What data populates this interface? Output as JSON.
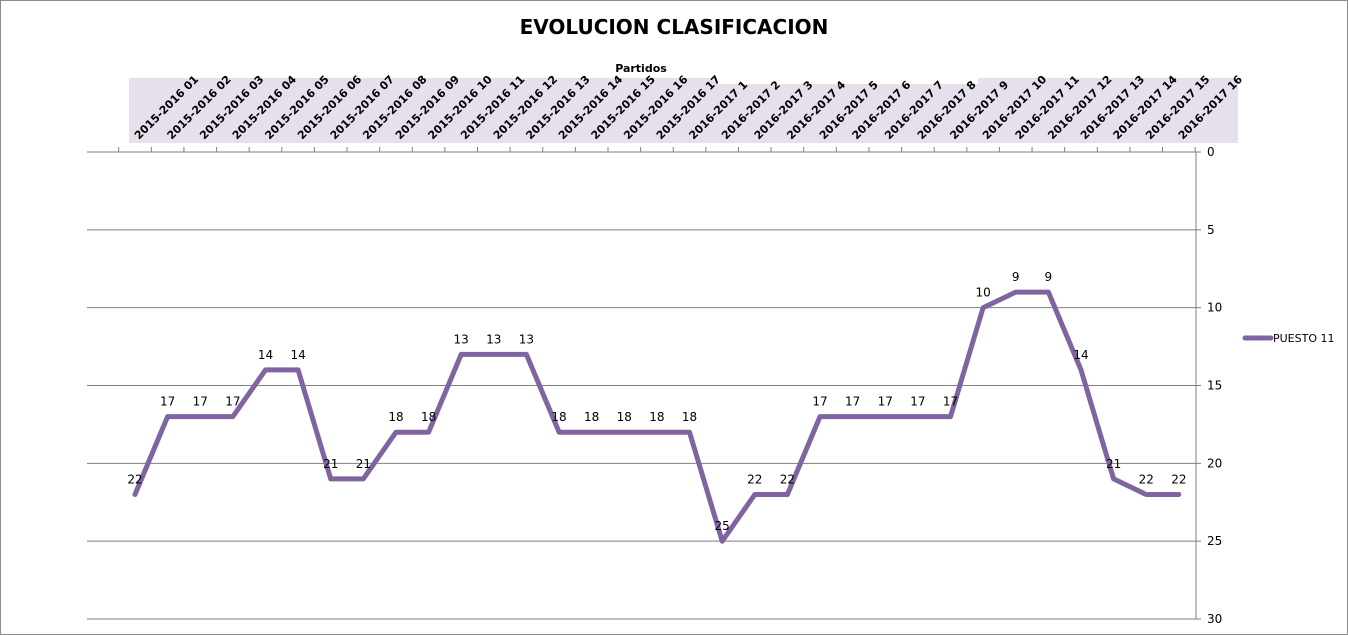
{
  "chart_data": {
    "type": "line",
    "title": "EVOLUCION CLASIFICACION",
    "xlabel": "Partidos",
    "ylabel": "",
    "y_reversed": true,
    "ylim": [
      0,
      30
    ],
    "yticks": [
      0,
      5,
      10,
      15,
      20,
      25,
      30
    ],
    "x_axis_position": "top",
    "y_axis_position": "right",
    "grid": true,
    "legend_position": "right",
    "x_tick_labels": [
      "2015-2016 01",
      "2015-2016 02",
      "2015-2016 03",
      "2015-2016 04",
      "2015-2016 05",
      "2015-2016 06",
      "2015-2016 07",
      "2015-2016 08",
      "2015-2016 09",
      "2015-2016 10",
      "2015-2016 11",
      "2015-2016 12",
      "2015-2016 13",
      "2015-2016 14",
      "2015-2016 15",
      "2015-2016 16",
      "2015-2016 17",
      "2016-2017 1",
      "2016-2017 2",
      "2016-2017 3",
      "2016-2017 4",
      "2016-2017 5",
      "2016-2017 6",
      "2016-2017 7",
      "2016-2017 8",
      "2016-2017 9",
      "2016-2017 10",
      "2016-2017 11",
      "2016-2017 12",
      "2016-2017 13",
      "2016-2017 14",
      "2016-2017 15",
      "2016-2017 16"
    ],
    "series": [
      {
        "name": "PUESTO 11",
        "color": "#8064a2",
        "values": [
          22,
          17,
          17,
          17,
          14,
          14,
          21,
          21,
          18,
          18,
          13,
          13,
          13,
          18,
          18,
          18,
          18,
          18,
          25,
          22,
          22,
          17,
          17,
          17,
          17,
          17,
          10,
          9,
          9,
          14,
          21,
          22,
          22
        ]
      }
    ]
  },
  "colors": {
    "header_band": "#e6e0ec",
    "gridline": "#7f7f7f",
    "axis": "#7f7f7f"
  }
}
